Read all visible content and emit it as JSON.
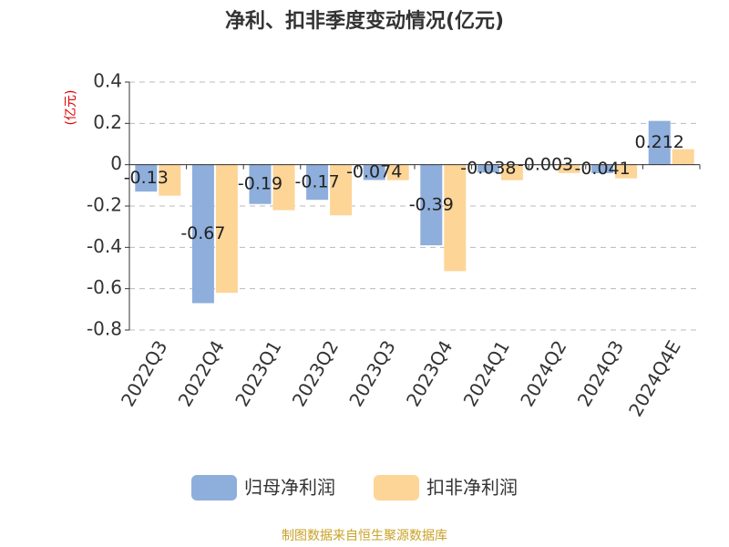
{
  "chart_data": {
    "type": "bar",
    "title": "净利、扣非季度变动情况(亿元)",
    "y_label": "(亿元)",
    "categories": [
      "2022Q3",
      "2022Q4",
      "2023Q1",
      "2023Q2",
      "2023Q3",
      "2023Q4",
      "2024Q1",
      "2024Q2",
      "2024Q3",
      "2024Q4E"
    ],
    "series": [
      {
        "name": "归母净利润",
        "color": "#8eaedc",
        "values": [
          -0.13,
          -0.67,
          -0.19,
          -0.17,
          -0.074,
          -0.39,
          -0.038,
          -0.003,
          -0.041,
          0.212
        ]
      },
      {
        "name": "扣非净利润",
        "color": "#fdd597",
        "values": [
          -0.15,
          -0.62,
          -0.22,
          -0.245,
          -0.075,
          -0.515,
          -0.075,
          -0.04,
          -0.066,
          0.075
        ]
      }
    ],
    "ylim": [
      -0.8,
      0.4
    ],
    "yticks": [
      0.4,
      0.2,
      0,
      -0.2,
      -0.4,
      -0.6,
      -0.8
    ],
    "grid": true,
    "source": "制图数据来自恒生聚源数据库"
  }
}
